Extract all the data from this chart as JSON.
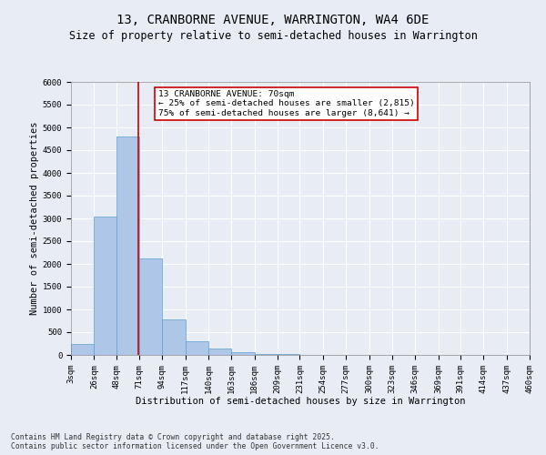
{
  "title_line1": "13, CRANBORNE AVENUE, WARRINGTON, WA4 6DE",
  "title_line2": "Size of property relative to semi-detached houses in Warrington",
  "xlabel": "Distribution of semi-detached houses by size in Warrington",
  "ylabel": "Number of semi-detached properties",
  "footer_line1": "Contains HM Land Registry data © Crown copyright and database right 2025.",
  "footer_line2": "Contains public sector information licensed under the Open Government Licence v3.0.",
  "annotation_line1": "13 CRANBORNE AVENUE: 70sqm",
  "annotation_line2": "← 25% of semi-detached houses are smaller (2,815)",
  "annotation_line3": "75% of semi-detached houses are larger (8,641) →",
  "property_size": 70,
  "bin_edges": [
    3,
    26,
    48,
    71,
    94,
    117,
    140,
    163,
    186,
    209,
    231,
    254,
    277,
    300,
    323,
    346,
    369,
    391,
    414,
    437,
    460
  ],
  "bar_values": [
    240,
    3050,
    4800,
    2120,
    775,
    310,
    150,
    70,
    30,
    15,
    10,
    5,
    3,
    2,
    1,
    1,
    1,
    0,
    0,
    0
  ],
  "bar_color": "#aec6e8",
  "bar_edge_color": "#5a9fd4",
  "vline_color": "#cc0000",
  "vline_x": 70,
  "ylim": [
    0,
    6000
  ],
  "yticks": [
    0,
    500,
    1000,
    1500,
    2000,
    2500,
    3000,
    3500,
    4000,
    4500,
    5000,
    5500,
    6000
  ],
  "bg_color": "#e8edf5",
  "plot_bg_color": "#e8edf5",
  "grid_color": "#ffffff",
  "title_fontsize": 10,
  "subtitle_fontsize": 8.5,
  "axis_label_fontsize": 7.5,
  "tick_fontsize": 6.5,
  "annotation_fontsize": 6.8,
  "footer_fontsize": 5.8
}
